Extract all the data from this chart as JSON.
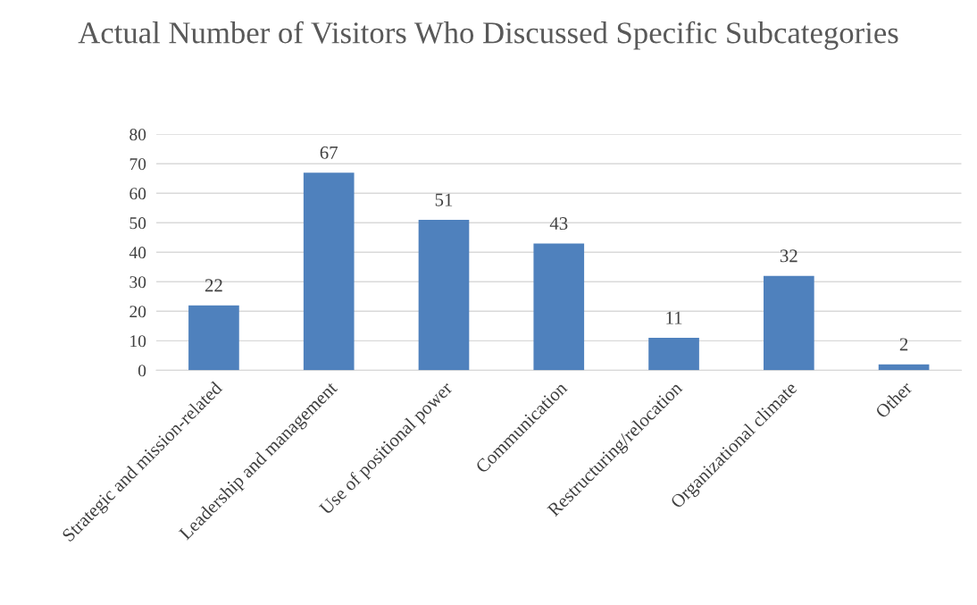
{
  "chart_data": {
    "type": "bar",
    "title": "Actual Number of Visitors Who Discussed Specific Subcategories",
    "categories": [
      "Strategic and mission-related",
      "Leadership and management",
      "Use of positional power",
      "Communication",
      "Restructuring/relocation",
      "Organizational climate",
      "Other"
    ],
    "values": [
      22,
      67,
      51,
      43,
      11,
      32,
      2
    ],
    "color": "#4f81bd",
    "ylim": [
      0,
      80
    ],
    "yticks": [
      0,
      10,
      20,
      30,
      40,
      50,
      60,
      70,
      80
    ],
    "grid": "y",
    "data_labels": true
  }
}
